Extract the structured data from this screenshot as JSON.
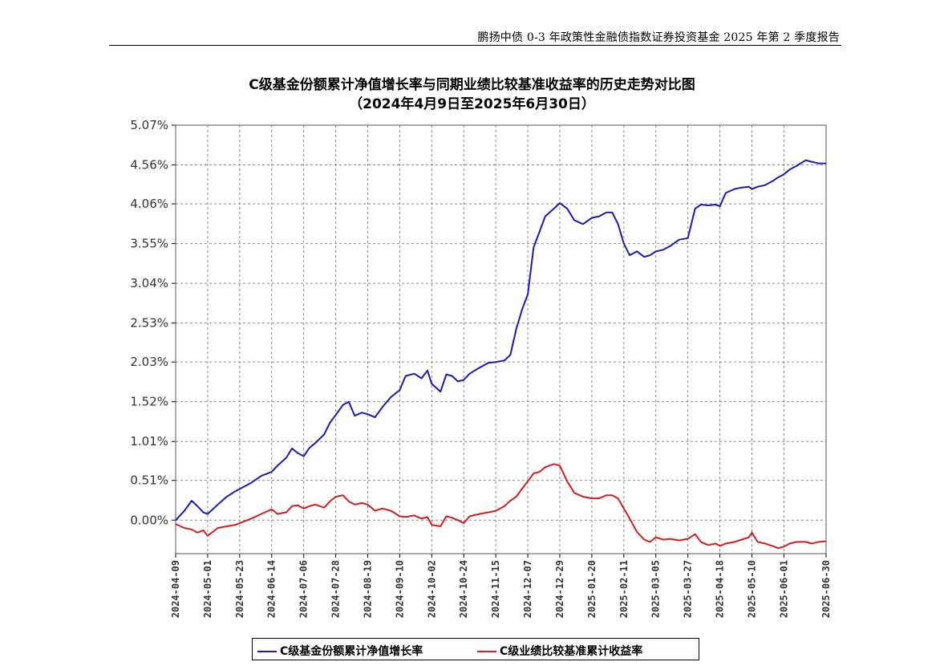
{
  "header": {
    "text": "鹏扬中债 0-3 年政策性金融债指数证券投资基金 2025 年第 2 季度报告"
  },
  "chart_data": {
    "type": "line",
    "title": "C级基金份额累计净值增长率与同期业绩比较基准收益率的历史走势对比图",
    "subtitle": "（2024年4月9日至2025年6月30日）",
    "xlabel": "",
    "ylabel": "",
    "grid": true,
    "legend_position": "bottom",
    "y_ticks": [
      {
        "label": "5.07%",
        "value": 5.07
      },
      {
        "label": "4.56%",
        "value": 4.56
      },
      {
        "label": "4.06%",
        "value": 4.06
      },
      {
        "label": "3.55%",
        "value": 3.55
      },
      {
        "label": "3.04%",
        "value": 3.04
      },
      {
        "label": "2.53%",
        "value": 2.53
      },
      {
        "label": "2.03%",
        "value": 2.03
      },
      {
        "label": "1.52%",
        "value": 1.52
      },
      {
        "label": "1.01%",
        "value": 1.01
      },
      {
        "label": "0.51%",
        "value": 0.51
      },
      {
        "label": "0.00%",
        "value": 0.0
      }
    ],
    "ylim": [
      -0.43,
      5.07
    ],
    "x_ticks": [
      "2024-04-09",
      "2024-05-01",
      "2024-05-23",
      "2024-06-14",
      "2024-07-06",
      "2024-07-28",
      "2024-08-19",
      "2024-09-10",
      "2024-10-02",
      "2024-10-24",
      "2024-11-15",
      "2024-12-07",
      "2024-12-29",
      "2025-01-20",
      "2025-02-11",
      "2025-03-05",
      "2025-03-27",
      "2025-04-18",
      "2025-05-10",
      "2025-06-01",
      "2025-06-30"
    ],
    "x": [
      "2024-04-09",
      "2024-04-15",
      "2024-04-20",
      "2024-04-24",
      "2024-04-28",
      "2024-05-01",
      "2024-05-08",
      "2024-05-14",
      "2024-05-20",
      "2024-05-23",
      "2024-05-31",
      "2024-06-07",
      "2024-06-14",
      "2024-06-18",
      "2024-06-24",
      "2024-06-28",
      "2024-07-02",
      "2024-07-06",
      "2024-07-10",
      "2024-07-14",
      "2024-07-20",
      "2024-07-24",
      "2024-07-28",
      "2024-08-02",
      "2024-08-06",
      "2024-08-10",
      "2024-08-15",
      "2024-08-19",
      "2024-08-24",
      "2024-08-29",
      "2024-09-04",
      "2024-09-10",
      "2024-09-14",
      "2024-09-20",
      "2024-09-25",
      "2024-09-29",
      "2024-10-02",
      "2024-10-08",
      "2024-10-12",
      "2024-10-16",
      "2024-10-20",
      "2024-10-24",
      "2024-10-28",
      "2024-11-04",
      "2024-11-10",
      "2024-11-15",
      "2024-11-21",
      "2024-11-25",
      "2024-11-29",
      "2024-12-03",
      "2024-12-07",
      "2024-12-11",
      "2024-12-15",
      "2024-12-19",
      "2024-12-25",
      "2024-12-29",
      "2025-01-03",
      "2025-01-08",
      "2025-01-14",
      "2025-01-20",
      "2025-01-25",
      "2025-01-30",
      "2025-02-03",
      "2025-02-07",
      "2025-02-11",
      "2025-02-15",
      "2025-02-20",
      "2025-02-25",
      "2025-03-01",
      "2025-03-05",
      "2025-03-10",
      "2025-03-15",
      "2025-03-21",
      "2025-03-27",
      "2025-04-01",
      "2025-04-05",
      "2025-04-10",
      "2025-04-15",
      "2025-04-18",
      "2025-04-22",
      "2025-04-28",
      "2025-05-03",
      "2025-05-08",
      "2025-05-10",
      "2025-05-14",
      "2025-05-19",
      "2025-05-24",
      "2025-05-28",
      "2025-06-01",
      "2025-06-05",
      "2025-06-10",
      "2025-06-16",
      "2025-06-20",
      "2025-06-25",
      "2025-06-30"
    ],
    "series": [
      {
        "name": "C级基金份额累计净值增长率",
        "color": "#1a1ab4",
        "values": [
          0.0,
          0.12,
          0.25,
          0.18,
          0.1,
          0.08,
          0.2,
          0.3,
          0.37,
          0.4,
          0.48,
          0.57,
          0.62,
          0.7,
          0.8,
          0.92,
          0.86,
          0.82,
          0.93,
          0.99,
          1.1,
          1.25,
          1.35,
          1.48,
          1.52,
          1.34,
          1.38,
          1.36,
          1.32,
          1.45,
          1.58,
          1.67,
          1.85,
          1.88,
          1.82,
          1.92,
          1.75,
          1.65,
          1.87,
          1.85,
          1.78,
          1.8,
          1.88,
          1.96,
          2.02,
          2.03,
          2.05,
          2.12,
          2.45,
          2.7,
          2.9,
          3.5,
          3.7,
          3.9,
          4.0,
          4.07,
          4.0,
          3.85,
          3.8,
          3.88,
          3.9,
          3.95,
          3.95,
          3.8,
          3.55,
          3.4,
          3.45,
          3.38,
          3.4,
          3.45,
          3.47,
          3.52,
          3.6,
          3.62,
          4.0,
          4.05,
          4.04,
          4.05,
          4.03,
          4.2,
          4.25,
          4.27,
          4.28,
          4.25,
          4.28,
          4.3,
          4.35,
          4.4,
          4.44,
          4.5,
          4.55,
          4.62,
          4.6,
          4.58,
          4.58
        ]
      },
      {
        "name": "C级业绩比较基准累计收益率",
        "color": "#d21e1e",
        "values": [
          -0.05,
          -0.1,
          -0.12,
          -0.16,
          -0.13,
          -0.2,
          -0.1,
          -0.08,
          -0.06,
          -0.04,
          0.02,
          0.08,
          0.14,
          0.08,
          0.1,
          0.18,
          0.19,
          0.15,
          0.18,
          0.2,
          0.16,
          0.24,
          0.3,
          0.32,
          0.24,
          0.2,
          0.22,
          0.2,
          0.12,
          0.15,
          0.12,
          0.05,
          0.04,
          0.06,
          0.02,
          0.04,
          -0.06,
          -0.08,
          0.05,
          0.03,
          0.0,
          -0.04,
          0.05,
          0.08,
          0.1,
          0.12,
          0.18,
          0.25,
          0.3,
          0.4,
          0.5,
          0.6,
          0.62,
          0.68,
          0.72,
          0.7,
          0.5,
          0.35,
          0.3,
          0.28,
          0.28,
          0.32,
          0.32,
          0.28,
          0.15,
          0.02,
          -0.15,
          -0.25,
          -0.28,
          -0.22,
          -0.25,
          -0.24,
          -0.26,
          -0.24,
          -0.18,
          -0.28,
          -0.32,
          -0.3,
          -0.33,
          -0.3,
          -0.28,
          -0.25,
          -0.22,
          -0.16,
          -0.28,
          -0.3,
          -0.33,
          -0.36,
          -0.34,
          -0.3,
          -0.28,
          -0.28,
          -0.3,
          -0.28,
          -0.27
        ]
      }
    ]
  }
}
